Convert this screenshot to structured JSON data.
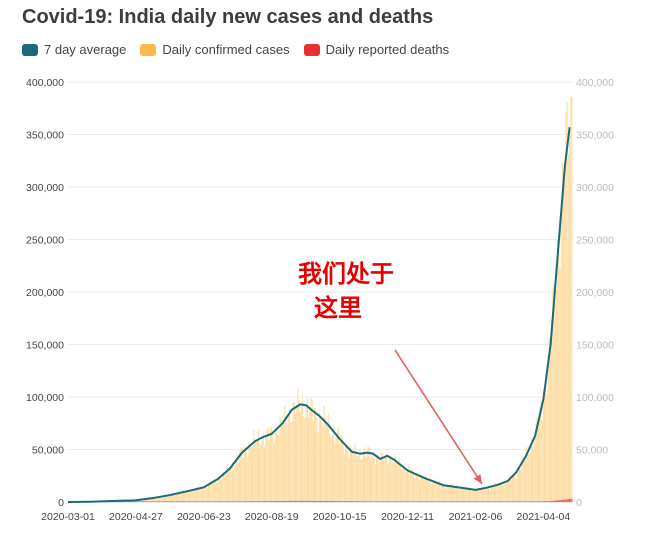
{
  "chart_data": {
    "type": "bar",
    "title": "Covid-19: India daily new cases and deaths",
    "legend_placement": "top-left",
    "grid": true,
    "ylim": [
      0,
      400000
    ],
    "yticks": [
      "0",
      "50,000",
      "100,000",
      "150,000",
      "200,000",
      "250,000",
      "300,000",
      "350,000",
      "400,000"
    ],
    "ytick_values": [
      0,
      50000,
      100000,
      150000,
      200000,
      250000,
      300000,
      350000,
      400000
    ],
    "xlim": [
      "2020-03-01",
      "2021-04-28"
    ],
    "xticks": [
      "2020-03-01",
      "2020-04-27",
      "2020-06-23",
      "2020-08-19",
      "2020-10-15",
      "2020-12-11",
      "2021-02-06",
      "2021-04-04"
    ],
    "series": [
      {
        "name": "7 day average",
        "kind": "line",
        "color": "#1a6b7a",
        "x": [
          "2020-03-01",
          "2020-03-20",
          "2020-04-10",
          "2020-04-27",
          "2020-05-10",
          "2020-05-25",
          "2020-06-10",
          "2020-06-23",
          "2020-07-05",
          "2020-07-15",
          "2020-07-25",
          "2020-08-05",
          "2020-08-12",
          "2020-08-19",
          "2020-08-28",
          "2020-09-05",
          "2020-09-12",
          "2020-09-17",
          "2020-09-22",
          "2020-09-28",
          "2020-10-05",
          "2020-10-15",
          "2020-10-25",
          "2020-11-01",
          "2020-11-07",
          "2020-11-12",
          "2020-11-18",
          "2020-11-24",
          "2020-11-30",
          "2020-12-11",
          "2020-12-25",
          "2021-01-10",
          "2021-01-25",
          "2021-02-06",
          "2021-02-15",
          "2021-02-25",
          "2021-03-05",
          "2021-03-12",
          "2021-03-20",
          "2021-03-28",
          "2021-04-04",
          "2021-04-10",
          "2021-04-16",
          "2021-04-22",
          "2021-04-26"
        ],
        "values": [
          0,
          300,
          1000,
          1600,
          3500,
          6500,
          10500,
          14000,
          22000,
          32000,
          47000,
          58000,
          62000,
          65000,
          75000,
          88000,
          93000,
          92000,
          87000,
          82000,
          74000,
          60000,
          48000,
          46000,
          47000,
          46000,
          41000,
          44000,
          40000,
          30000,
          23000,
          16000,
          13500,
          11500,
          13500,
          16500,
          20000,
          28000,
          43000,
          63000,
          98000,
          150000,
          235000,
          320000,
          357000
        ]
      },
      {
        "name": "Daily confirmed cases",
        "kind": "bar",
        "color": "#fcb94b",
        "peak_value": 386000,
        "peak_date": "2021-04-27"
      },
      {
        "name": "Daily reported deaths",
        "kind": "bar",
        "color": "#e8302f",
        "x": [
          "2020-03-01",
          "2020-06-01",
          "2020-09-15",
          "2020-11-15",
          "2021-02-06",
          "2021-03-15",
          "2021-04-10",
          "2021-04-28"
        ],
        "values": [
          0,
          200,
          1100,
          550,
          100,
          200,
          800,
          3200
        ]
      }
    ],
    "annotation": {
      "line1": "我们处于",
      "line2": "这里",
      "color": "#e60000",
      "points_to": "2021-02-06"
    }
  }
}
